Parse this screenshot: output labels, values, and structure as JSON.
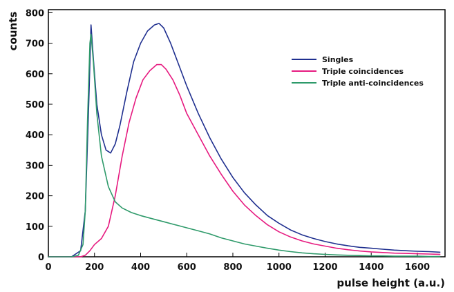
{
  "chart_data": {
    "type": "line",
    "xlabel": "pulse height (a.u.)",
    "ylabel": "counts",
    "xlim": [
      0,
      1720
    ],
    "ylim": [
      0,
      810
    ],
    "xticks": [
      0,
      200,
      400,
      600,
      800,
      1000,
      1200,
      1400,
      1600
    ],
    "yticks": [
      0,
      100,
      200,
      300,
      400,
      500,
      600,
      700,
      800
    ],
    "grid": false,
    "legend_position": "top-right",
    "series": [
      {
        "name": "Singles",
        "color": "#1f2f8f",
        "x": [
          0,
          100,
          140,
          160,
          175,
          185,
          195,
          210,
          230,
          250,
          270,
          290,
          310,
          340,
          370,
          400,
          430,
          460,
          480,
          500,
          530,
          560,
          600,
          650,
          700,
          750,
          800,
          850,
          900,
          950,
          1000,
          1050,
          1100,
          1150,
          1200,
          1250,
          1300,
          1350,
          1400,
          1450,
          1500,
          1550,
          1600,
          1650,
          1700
        ],
        "y": [
          0,
          0,
          20,
          150,
          500,
          760,
          650,
          500,
          400,
          350,
          340,
          370,
          430,
          540,
          640,
          700,
          740,
          760,
          765,
          750,
          700,
          640,
          560,
          470,
          390,
          320,
          260,
          210,
          170,
          135,
          110,
          88,
          72,
          60,
          50,
          42,
          36,
          31,
          28,
          25,
          22,
          20,
          18,
          17,
          15
        ]
      },
      {
        "name": "Triple coincidences",
        "color": "#e6197f",
        "x": [
          0,
          140,
          160,
          180,
          200,
          230,
          260,
          290,
          320,
          350,
          380,
          410,
          440,
          470,
          490,
          510,
          540,
          570,
          600,
          650,
          700,
          750,
          800,
          850,
          900,
          950,
          1000,
          1050,
          1100,
          1150,
          1200,
          1250,
          1300,
          1350,
          1400,
          1450,
          1500,
          1550,
          1600,
          1650,
          1700
        ],
        "y": [
          0,
          0,
          5,
          20,
          40,
          60,
          100,
          200,
          330,
          440,
          520,
          580,
          610,
          630,
          630,
          615,
          580,
          530,
          470,
          400,
          330,
          270,
          215,
          170,
          135,
          105,
          82,
          65,
          52,
          42,
          35,
          28,
          23,
          19,
          16,
          14,
          12,
          11,
          10,
          9,
          8
        ]
      },
      {
        "name": "Triple anti-coincidences",
        "color": "#2e9a6a",
        "x": [
          0,
          100,
          130,
          150,
          160,
          170,
          180,
          185,
          195,
          210,
          230,
          260,
          290,
          320,
          360,
          400,
          450,
          500,
          550,
          600,
          650,
          700,
          750,
          800,
          850,
          900,
          950,
          1000,
          1050,
          1100,
          1150,
          1200,
          1250,
          1300,
          1350,
          1400,
          1450,
          1500,
          1550,
          1600,
          1650,
          1700
        ],
        "y": [
          0,
          0,
          5,
          40,
          150,
          450,
          700,
          730,
          640,
          470,
          330,
          230,
          180,
          160,
          145,
          135,
          125,
          115,
          105,
          95,
          85,
          75,
          62,
          52,
          42,
          35,
          28,
          22,
          17,
          13,
          10,
          8,
          6,
          5,
          4,
          3,
          3,
          2,
          2,
          2,
          1,
          1
        ]
      }
    ]
  }
}
